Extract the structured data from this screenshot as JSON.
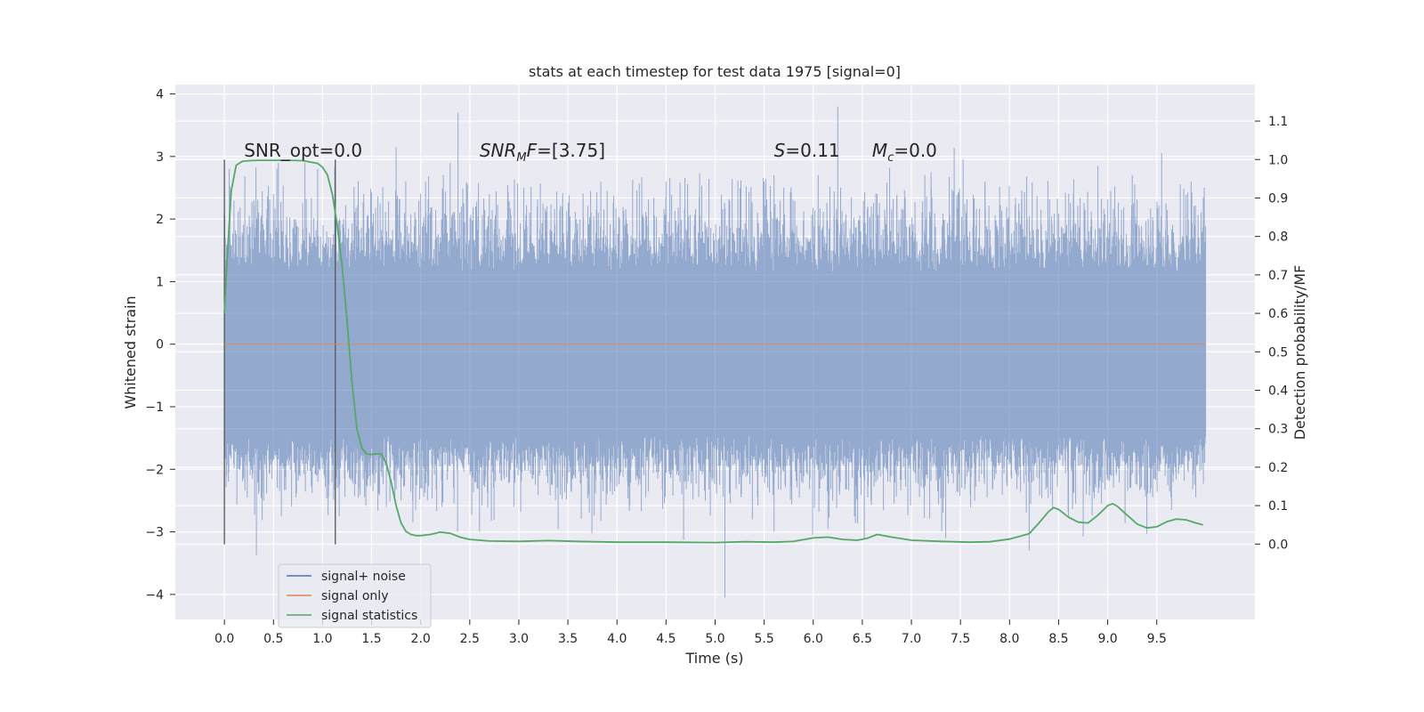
{
  "chart_data": {
    "type": "line",
    "title": "stats at each timestep for test data 1975 [signal=0]",
    "xlabel": "Time (s)",
    "ylabel": "Whitened strain",
    "ylabel_right": "Detection probability/MF",
    "xlim": [
      -0.5,
      10.5
    ],
    "ylim": [
      -4.4,
      4.15
    ],
    "ylim_right": [
      -0.196,
      1.195
    ],
    "x_ticks": [
      0.0,
      0.5,
      1.0,
      1.5,
      2.0,
      2.5,
      3.0,
      3.5,
      4.0,
      4.5,
      5.0,
      5.5,
      6.0,
      6.5,
      7.0,
      7.5,
      8.0,
      8.5,
      9.0,
      9.5
    ],
    "x_tick_labels": [
      "0.0",
      "0.5",
      "1.0",
      "1.5",
      "2.0",
      "2.5",
      "3.0",
      "3.5",
      "4.0",
      "4.5",
      "5.0",
      "5.5",
      "6.0",
      "6.5",
      "7.0",
      "7.5",
      "8.0",
      "8.5",
      "9.0",
      "9.5"
    ],
    "y_ticks": [
      4,
      3,
      2,
      1,
      0,
      -1,
      -2,
      -3,
      -4
    ],
    "y_tick_labels": [
      "4",
      "3",
      "2",
      "1",
      "0",
      "−1",
      "−2",
      "−3",
      "−4"
    ],
    "y2_ticks": [
      1.1,
      1.0,
      0.9,
      0.8,
      0.7,
      0.6,
      0.5,
      0.4,
      0.3,
      0.2,
      0.1,
      0.0
    ],
    "y2_tick_labels": [
      "1.1",
      "1.0",
      "0.9",
      "0.8",
      "0.7",
      "0.6",
      "0.5",
      "0.4",
      "0.3",
      "0.2",
      "0.1",
      "0.0"
    ],
    "grid": true,
    "legend_placement": "lower-left",
    "noise_band": {
      "x_start": 0.0,
      "x_end": 10.0,
      "core_low": -1.45,
      "core_high": 1.15,
      "peak_max": 3.8,
      "peak_min": -4.05
    },
    "vlines": [
      {
        "x": 0.0,
        "y_low": -3.2,
        "y_high": 2.95
      },
      {
        "x": 1.13,
        "y_low": -3.2,
        "y_high": 2.95
      }
    ],
    "annotations": [
      {
        "x": 0.2,
        "y": 3.0,
        "label": "SNR_opt=0.0",
        "math": false
      },
      {
        "x": 2.6,
        "y": 3.0,
        "base": "SNR",
        "sub": "M",
        "tail": "F",
        "rest": "=[3.75]",
        "math": true
      },
      {
        "x": 5.6,
        "y": 3.0,
        "base": "S",
        "sub": "",
        "tail": "",
        "rest": "=0.11",
        "math": true
      },
      {
        "x": 6.6,
        "y": 3.0,
        "base": "M",
        "sub": "c",
        "tail": "",
        "rest": "=0.0",
        "math": true
      }
    ],
    "series": [
      {
        "name": "signal+ noise",
        "color": "#4c72b0",
        "style": "noise",
        "spikes_up": [
          [
            0.05,
            2.8
          ],
          [
            0.3,
            2.3
          ],
          [
            0.5,
            2.4
          ],
          [
            0.55,
            2.9
          ],
          [
            0.95,
            2.8
          ],
          [
            1.42,
            2.4
          ],
          [
            1.75,
            3.15
          ],
          [
            2.05,
            2.6
          ],
          [
            2.3,
            2.9
          ],
          [
            2.38,
            3.7
          ],
          [
            2.7,
            2.4
          ],
          [
            3.05,
            2.5
          ],
          [
            3.9,
            2.45
          ],
          [
            4.5,
            2.6
          ],
          [
            5.5,
            2.6
          ],
          [
            5.6,
            2.7
          ],
          [
            6.05,
            2.7
          ],
          [
            6.25,
            3.8
          ],
          [
            6.65,
            2.4
          ],
          [
            7.2,
            2.75
          ],
          [
            7.75,
            2.6
          ],
          [
            8.65,
            2.4
          ],
          [
            8.9,
            2.85
          ],
          [
            9.25,
            2.7
          ],
          [
            9.55,
            3.05
          ],
          [
            9.85,
            2.6
          ]
        ],
        "spikes_down": [
          [
            0.4,
            -2.5
          ],
          [
            0.58,
            -2.75
          ],
          [
            1.15,
            -2.3
          ],
          [
            1.65,
            -2.6
          ],
          [
            1.92,
            -2.85
          ],
          [
            2.6,
            -3.0
          ],
          [
            2.95,
            -2.6
          ],
          [
            3.4,
            -2.95
          ],
          [
            3.9,
            -2.4
          ],
          [
            4.9,
            -2.5
          ],
          [
            5.1,
            -4.05
          ],
          [
            5.38,
            -2.8
          ],
          [
            5.6,
            -3.0
          ],
          [
            6.15,
            -2.95
          ],
          [
            6.42,
            -2.75
          ],
          [
            6.52,
            -3.1
          ],
          [
            7.35,
            -3.1
          ],
          [
            8.2,
            -3.3
          ],
          [
            8.6,
            -2.75
          ],
          [
            9.65,
            -2.65
          ]
        ]
      },
      {
        "name": "signal only",
        "color": "#dd8452",
        "x": [
          0.0,
          10.0
        ],
        "y": [
          0.0,
          0.0
        ]
      },
      {
        "name": "signal statistics",
        "color": "#55a868",
        "axis": "right",
        "x": [
          0.0,
          0.03,
          0.07,
          0.12,
          0.18,
          0.25,
          0.35,
          0.5,
          0.65,
          0.8,
          0.95,
          1.0,
          1.05,
          1.1,
          1.15,
          1.2,
          1.25,
          1.3,
          1.35,
          1.4,
          1.45,
          1.5,
          1.55,
          1.6,
          1.65,
          1.7,
          1.75,
          1.8,
          1.85,
          1.9,
          1.95,
          2.0,
          2.1,
          2.2,
          2.3,
          2.4,
          2.5,
          2.7,
          3.0,
          3.3,
          3.6,
          4.0,
          4.5,
          5.0,
          5.3,
          5.6,
          5.8,
          6.0,
          6.15,
          6.3,
          6.45,
          6.55,
          6.65,
          6.8,
          7.0,
          7.3,
          7.6,
          7.8,
          8.0,
          8.1,
          8.2,
          8.3,
          8.4,
          8.45,
          8.5,
          8.6,
          8.7,
          8.8,
          8.9,
          9.0,
          9.05,
          9.1,
          9.2,
          9.3,
          9.4,
          9.5,
          9.6,
          9.7,
          9.8,
          9.9,
          9.97
        ],
        "y": [
          0.6,
          0.75,
          0.92,
          0.985,
          0.995,
          0.997,
          0.998,
          0.998,
          0.998,
          0.997,
          0.99,
          0.98,
          0.96,
          0.91,
          0.83,
          0.72,
          0.58,
          0.42,
          0.3,
          0.25,
          0.234,
          0.233,
          0.235,
          0.234,
          0.21,
          0.16,
          0.1,
          0.055,
          0.033,
          0.025,
          0.022,
          0.022,
          0.025,
          0.031,
          0.028,
          0.018,
          0.012,
          0.008,
          0.007,
          0.009,
          0.007,
          0.005,
          0.005,
          0.004,
          0.006,
          0.005,
          0.007,
          0.016,
          0.018,
          0.012,
          0.01,
          0.015,
          0.025,
          0.018,
          0.01,
          0.007,
          0.005,
          0.006,
          0.013,
          0.02,
          0.027,
          0.055,
          0.085,
          0.095,
          0.09,
          0.07,
          0.057,
          0.055,
          0.075,
          0.1,
          0.105,
          0.098,
          0.075,
          0.052,
          0.042,
          0.045,
          0.058,
          0.065,
          0.063,
          0.055,
          0.05
        ]
      }
    ]
  }
}
